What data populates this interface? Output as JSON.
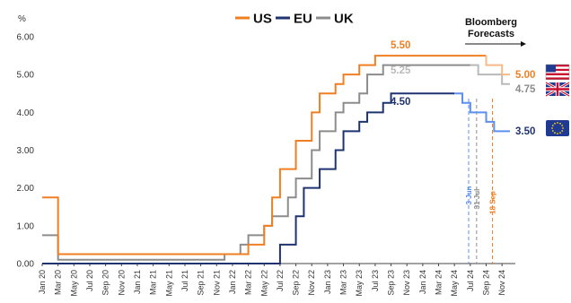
{
  "chart_data": {
    "type": "line",
    "step": true,
    "y_unit": "%",
    "ylim": [
      0,
      6
    ],
    "y_ticks": [
      "0.00",
      "1.00",
      "2.00",
      "3.00",
      "4.00",
      "5.00",
      "6.00"
    ],
    "x_range": [
      "2020-01",
      "2024-12"
    ],
    "x_ticks": [
      "Jan 20",
      "Mar 20",
      "May 20",
      "Jul 20",
      "Sep 20",
      "Nov 20",
      "Jan 21",
      "Mar 21",
      "May 21",
      "Jul 21",
      "Sep 21",
      "Nov 21",
      "Jan 22",
      "Mar 22",
      "May 22",
      "Jul 22",
      "Sep 22",
      "Nov 22",
      "Jan 23",
      "Mar 23",
      "May 23",
      "Jul 23",
      "Sep 23",
      "Nov 23",
      "Jan 24",
      "Mar 24",
      "May 24",
      "Jul 24",
      "Sep 24",
      "Nov 24"
    ],
    "grid": false,
    "legend_position": "top",
    "series": [
      {
        "name": "US",
        "color": "#f07f23",
        "forecast_color": "#f8b987",
        "points": [
          [
            "2020-01",
            1.75
          ],
          [
            "2020-03",
            1.25
          ],
          [
            "2020-03",
            0.25
          ],
          [
            "2022-03",
            0.5
          ],
          [
            "2022-05",
            1.0
          ],
          [
            "2022-06",
            1.75
          ],
          [
            "2022-07",
            2.5
          ],
          [
            "2022-09",
            3.25
          ],
          [
            "2022-11",
            4.0
          ],
          [
            "2022-12",
            4.5
          ],
          [
            "2023-02",
            4.75
          ],
          [
            "2023-03",
            5.0
          ],
          [
            "2023-05",
            5.25
          ],
          [
            "2023-07",
            5.5
          ],
          [
            "2024-09",
            5.5
          ]
        ],
        "forecast": [
          [
            "2024-09",
            5.5
          ],
          [
            "2024-09",
            5.25
          ],
          [
            "2024-11",
            5.25
          ],
          [
            "2024-11",
            5.0
          ],
          [
            "2024-12",
            5.0
          ]
        ],
        "labels": [
          "5.50",
          "5.00"
        ]
      },
      {
        "name": "EU",
        "color": "#1f3370",
        "forecast_color": "#5b8ff0",
        "points": [
          [
            "2020-01",
            0.0
          ],
          [
            "2022-07",
            0.0
          ],
          [
            "2022-07",
            0.5
          ],
          [
            "2022-09",
            1.25
          ],
          [
            "2022-10",
            2.0
          ],
          [
            "2022-12",
            2.5
          ],
          [
            "2023-02",
            3.0
          ],
          [
            "2023-03",
            3.5
          ],
          [
            "2023-05",
            3.75
          ],
          [
            "2023-06",
            4.0
          ],
          [
            "2023-08",
            4.25
          ],
          [
            "2023-09",
            4.5
          ],
          [
            "2024-05",
            4.5
          ]
        ],
        "forecast": [
          [
            "2024-05",
            4.5
          ],
          [
            "2024-06",
            4.25
          ],
          [
            "2024-07",
            4.0
          ],
          [
            "2024-09",
            3.75
          ],
          [
            "2024-10",
            3.5
          ],
          [
            "2024-12",
            3.5
          ]
        ],
        "labels": [
          "4.50",
          "3.50"
        ]
      },
      {
        "name": "UK",
        "color": "#8c8c8c",
        "forecast_color": "#b9b9b9",
        "points": [
          [
            "2020-01",
            0.75
          ],
          [
            "2020-03",
            0.25
          ],
          [
            "2020-03",
            0.1
          ],
          [
            "2021-12",
            0.1
          ],
          [
            "2021-12",
            0.25
          ],
          [
            "2022-02",
            0.5
          ],
          [
            "2022-03",
            0.75
          ],
          [
            "2022-05",
            1.0
          ],
          [
            "2022-06",
            1.25
          ],
          [
            "2022-08",
            1.75
          ],
          [
            "2022-09",
            2.25
          ],
          [
            "2022-11",
            3.0
          ],
          [
            "2022-12",
            3.5
          ],
          [
            "2023-02",
            4.0
          ],
          [
            "2023-03",
            4.25
          ],
          [
            "2023-05",
            4.5
          ],
          [
            "2023-06",
            5.0
          ],
          [
            "2023-08",
            5.25
          ],
          [
            "2024-07",
            5.25
          ]
        ],
        "forecast": [
          [
            "2024-07",
            5.25
          ],
          [
            "2024-08",
            5.0
          ],
          [
            "2024-11",
            5.0
          ],
          [
            "2024-11",
            4.75
          ],
          [
            "2024-12",
            4.75
          ]
        ],
        "labels": [
          "5.25",
          "4.75"
        ]
      }
    ],
    "annotations": [
      {
        "label": "3 Jun",
        "date": "2024-06",
        "color": "#5b8ff0"
      },
      {
        "label": "31 Jul",
        "date": "2024-07",
        "color": "#8c8c8c"
      },
      {
        "label": "18 Sep",
        "date": "2024-09",
        "color": "#f07f23"
      }
    ],
    "forecast_label": "Bloomberg Forecasts",
    "forecast_label_lines": [
      "Bloomberg",
      "Forecasts"
    ],
    "flags": [
      {
        "series": "US",
        "icon": "us-flag-icon"
      },
      {
        "series": "UK",
        "icon": "uk-flag-icon"
      },
      {
        "series": "EU",
        "icon": "eu-flag-icon"
      }
    ]
  }
}
